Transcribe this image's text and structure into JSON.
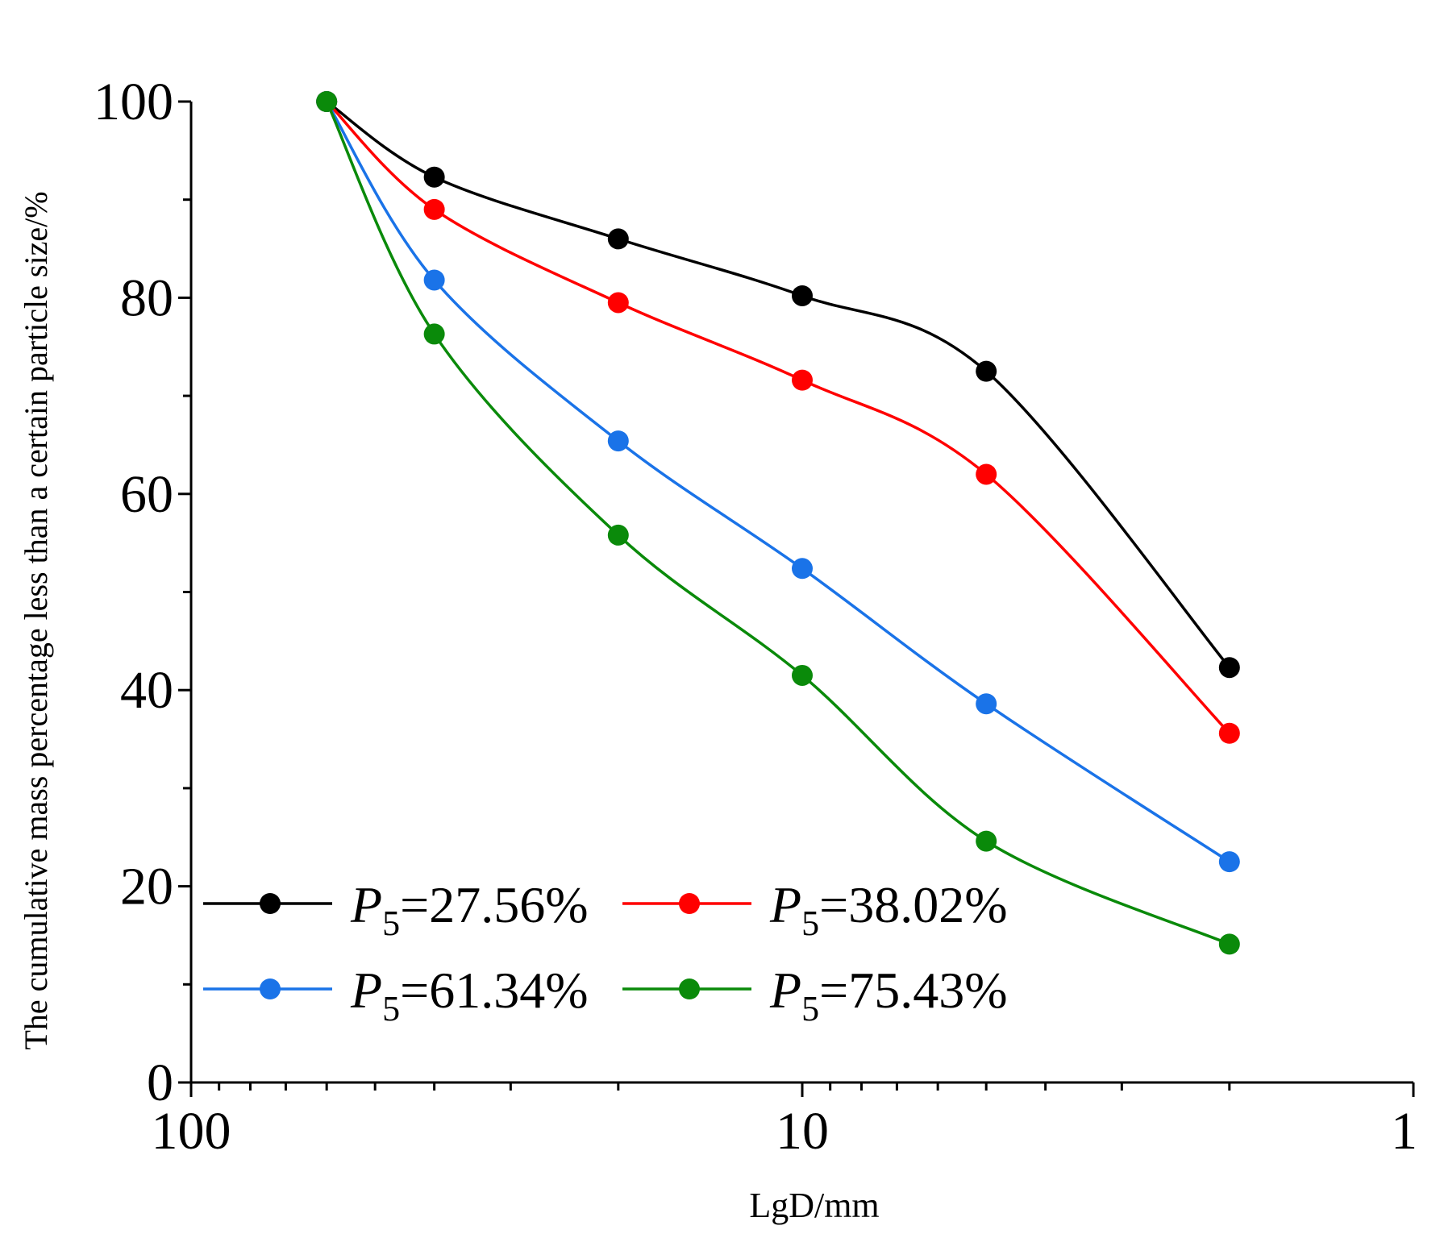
{
  "chart_data": {
    "type": "line",
    "title": "",
    "xlabel": "LgD/mm",
    "ylabel": "The cumulative mass percentage less than a certain particle size/%",
    "x_scale": "log",
    "x_reversed": true,
    "xlim": [
      100,
      1
    ],
    "ylim": [
      0,
      100
    ],
    "x_ticks": [
      100,
      10,
      1
    ],
    "x_tick_labels": [
      "100",
      "10",
      "1"
    ],
    "y_ticks": [
      0,
      20,
      40,
      60,
      80,
      100
    ],
    "y_tick_labels": [
      "0",
      "20",
      "40",
      "60",
      "80",
      "100"
    ],
    "y_minor_step": 10,
    "x": [
      60,
      40,
      20,
      10,
      5,
      2
    ],
    "legend_position": "bottom-left",
    "legend_prefix": "P",
    "legend_subscript": "5",
    "series": [
      {
        "name": "P5=27.56%",
        "label_value": "=27.56%",
        "color": "#000000",
        "values": [
          100,
          92.3,
          86.0,
          80.2,
          72.5,
          42.3
        ]
      },
      {
        "name": "P5=38.02%",
        "label_value": "=38.02%",
        "color": "#ff0000",
        "values": [
          100,
          89.0,
          79.5,
          71.6,
          62.0,
          35.6
        ]
      },
      {
        "name": "P5=61.34%",
        "label_value": "=61.34%",
        "color": "#1a73e8",
        "values": [
          100,
          81.8,
          65.4,
          52.4,
          38.6,
          22.5
        ]
      },
      {
        "name": "P5=75.43%",
        "label_value": "=75.43%",
        "color": "#0a8a0a",
        "values": [
          100,
          76.3,
          55.8,
          41.5,
          24.6,
          14.1
        ]
      }
    ]
  }
}
